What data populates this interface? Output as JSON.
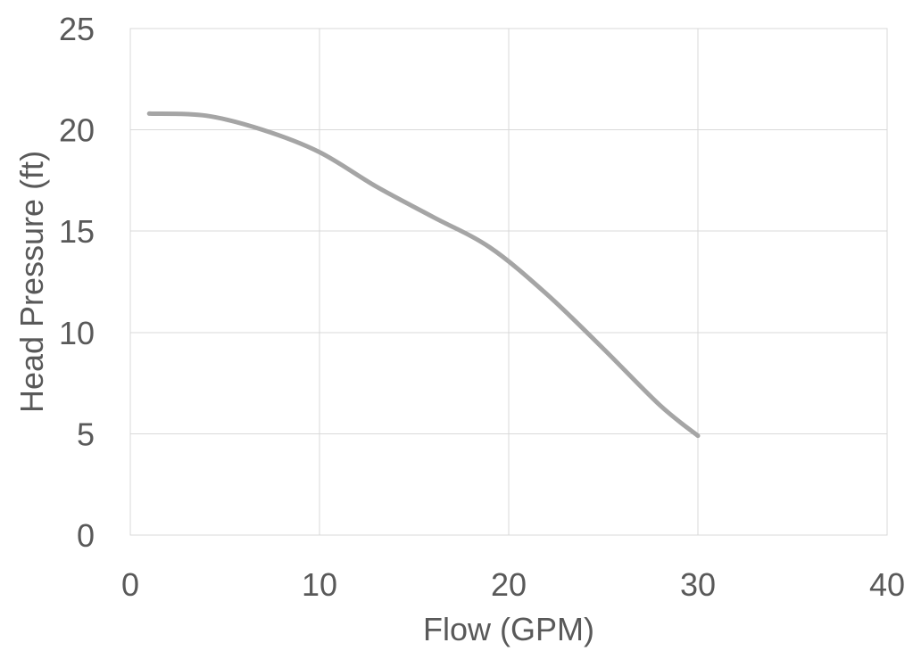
{
  "chart_data": {
    "type": "line",
    "title": "",
    "xlabel": "Flow (GPM)",
    "ylabel": "Head Pressure (ft)",
    "xlim": [
      0,
      40
    ],
    "ylim": [
      0,
      25
    ],
    "x_ticks": [
      0,
      10,
      20,
      30,
      40
    ],
    "y_ticks": [
      0,
      5,
      10,
      15,
      20,
      25
    ],
    "grid": true,
    "legend": "none",
    "series": [
      {
        "color": "#a5a5a5",
        "smooth": true,
        "points": [
          [
            1,
            20.8
          ],
          [
            4,
            20.7
          ],
          [
            7,
            20.0
          ],
          [
            10,
            18.9
          ],
          [
            13,
            17.2
          ],
          [
            16,
            15.7
          ],
          [
            19,
            14.2
          ],
          [
            22,
            11.9
          ],
          [
            25,
            9.2
          ],
          [
            28,
            6.4
          ],
          [
            30,
            4.9
          ]
        ]
      }
    ]
  }
}
